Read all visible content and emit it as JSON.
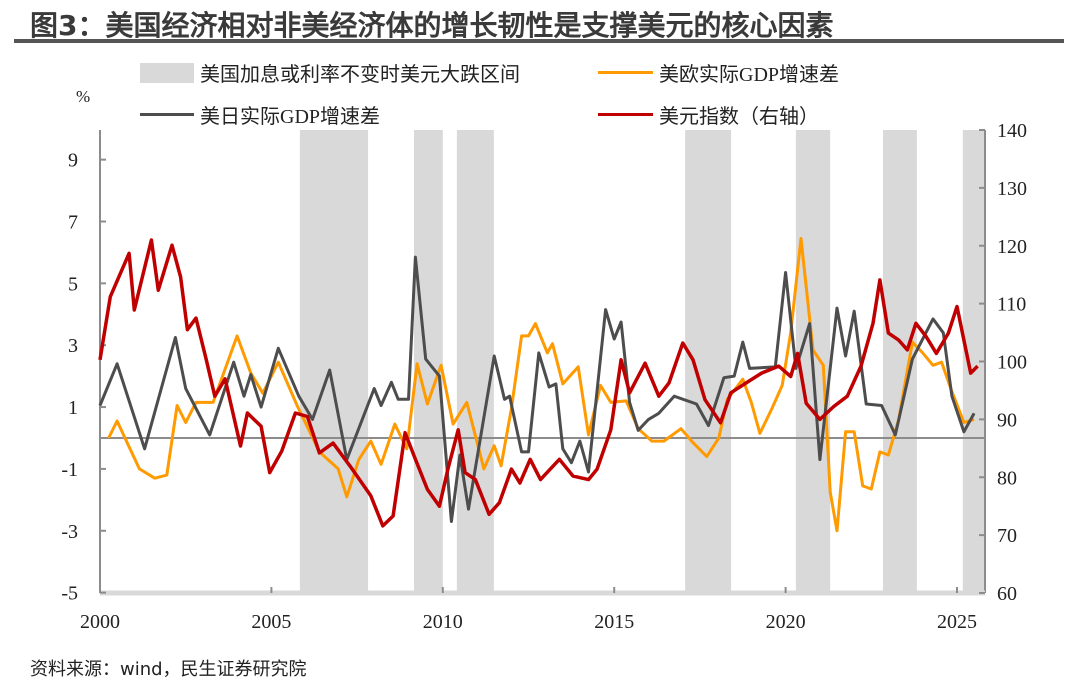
{
  "title": "图3：美国经济相对非美经济体的增长韧性是支撑美元的核心因素",
  "source": "资料来源：wind，民生证券研究院",
  "chart_data": {
    "type": "line",
    "title": "图3：美国经济相对非美经济体的增长韧性是支撑美元的核心因素",
    "ylabel": "%",
    "xlim": [
      2000,
      2025.8
    ],
    "ylim_left": [
      -5,
      10
    ],
    "ylim_right": [
      60,
      140
    ],
    "x_ticks": [
      2000,
      2005,
      2010,
      2015,
      2020,
      2025
    ],
    "y_ticks_left": [
      9,
      7,
      5,
      3,
      1,
      -1,
      -3,
      -5
    ],
    "y_ticks_right": [
      140,
      130,
      120,
      110,
      100,
      90,
      80,
      70,
      60
    ],
    "grid": false,
    "legend_position": "top",
    "colors": {
      "shade": "#d9d9d9",
      "us_eu": "#ff9a00",
      "us_jp": "#4d4d4d",
      "dxy": "#c00000",
      "zero": "#8c8c8c"
    },
    "shaded_ranges": {
      "name": "美国加息或利率不变时美元大跌区间",
      "ranges": [
        [
          2005.83,
          2007.82
        ],
        [
          2009.16,
          2010.0
        ],
        [
          2010.41,
          2011.49
        ],
        [
          2017.07,
          2018.41
        ],
        [
          2020.3,
          2021.3
        ],
        [
          2022.84,
          2023.83
        ],
        [
          2025.17,
          2025.8
        ]
      ]
    },
    "series": [
      {
        "name": "美欧实际GDP增速差",
        "axis": "left",
        "x": [
          2000.25,
          2000.5,
          2001.15,
          2001.6,
          2001.95,
          2002.25,
          2002.5,
          2002.8,
          2003.3,
          2004.0,
          2004.4,
          2004.75,
          2005.2,
          2005.75,
          2006.4,
          2006.95,
          2007.2,
          2007.55,
          2007.9,
          2008.2,
          2008.6,
          2008.95,
          2009.25,
          2009.55,
          2009.95,
          2010.3,
          2010.7,
          2011.2,
          2011.5,
          2011.7,
          2012.0,
          2012.3,
          2012.5,
          2012.7,
          2013.05,
          2013.2,
          2013.5,
          2013.95,
          2014.25,
          2014.6,
          2014.9,
          2015.35,
          2015.7,
          2016.1,
          2016.45,
          2016.95,
          2017.3,
          2017.7,
          2018.05,
          2018.3,
          2018.75,
          2019.0,
          2019.25,
          2019.6,
          2019.9,
          2020.15,
          2020.45,
          2020.8,
          2021.1,
          2021.3,
          2021.5,
          2021.75,
          2022.0,
          2022.25,
          2022.5,
          2022.75,
          2023.0,
          2023.3,
          2023.7,
          2024.0,
          2024.3,
          2024.55,
          2024.85,
          2025.2,
          2025.5
        ],
        "values": [
          0.0,
          0.55,
          -1.0,
          -1.3,
          -1.2,
          1.05,
          0.5,
          1.15,
          1.15,
          3.3,
          2.1,
          1.45,
          2.45,
          1.05,
          -0.45,
          -1.0,
          -1.9,
          -0.7,
          -0.1,
          -0.85,
          0.45,
          -0.35,
          2.4,
          1.1,
          2.35,
          0.45,
          1.15,
          -1.0,
          -0.25,
          -0.9,
          0.95,
          3.3,
          3.3,
          3.7,
          2.75,
          3.05,
          1.75,
          2.3,
          0.1,
          1.7,
          1.15,
          1.2,
          0.3,
          -0.1,
          -0.1,
          0.3,
          -0.15,
          -0.6,
          0.0,
          1.25,
          1.9,
          1.15,
          0.15,
          0.95,
          1.7,
          3.4,
          6.45,
          2.85,
          2.35,
          -1.75,
          -3.0,
          0.2,
          0.2,
          -1.55,
          -1.65,
          -0.45,
          -0.55,
          0.6,
          3.1,
          2.75,
          2.35,
          2.45,
          1.5,
          0.5,
          0.6
        ]
      },
      {
        "name": "美日实际GDP增速差",
        "axis": "left",
        "x": [
          2000.0,
          2000.5,
          2001.3,
          2002.2,
          2002.5,
          2003.2,
          2003.9,
          2004.2,
          2004.4,
          2004.7,
          2005.2,
          2005.8,
          2006.2,
          2006.7,
          2007.2,
          2008.0,
          2008.2,
          2008.5,
          2008.7,
          2009.0,
          2009.2,
          2009.5,
          2009.9,
          2010.25,
          2010.5,
          2010.75,
          2011.5,
          2011.8,
          2011.95,
          2012.3,
          2012.5,
          2012.8,
          2013.1,
          2013.3,
          2013.5,
          2013.75,
          2014.0,
          2014.25,
          2014.75,
          2015.0,
          2015.2,
          2015.45,
          2015.7,
          2016.0,
          2016.3,
          2016.75,
          2017.4,
          2017.75,
          2018.2,
          2018.5,
          2018.75,
          2018.95,
          2019.7,
          2020.0,
          2020.3,
          2020.7,
          2021.0,
          2021.5,
          2021.75,
          2022.0,
          2022.35,
          2022.8,
          2023.2,
          2023.7,
          2024.3,
          2024.6,
          2024.85,
          2025.2,
          2025.5
        ],
        "values": [
          1.05,
          2.4,
          -0.35,
          3.25,
          1.6,
          0.1,
          2.45,
          1.35,
          2.05,
          1.0,
          2.9,
          1.35,
          0.6,
          2.2,
          -0.7,
          1.6,
          1.05,
          1.8,
          1.25,
          1.25,
          5.85,
          2.55,
          2.0,
          -2.7,
          -0.55,
          -2.3,
          2.65,
          1.25,
          1.35,
          -0.45,
          -0.45,
          2.75,
          1.65,
          1.75,
          -0.35,
          -0.8,
          -0.1,
          -1.1,
          4.15,
          3.2,
          3.75,
          1.15,
          0.25,
          0.6,
          0.8,
          1.35,
          1.1,
          0.4,
          1.95,
          2.0,
          3.1,
          2.25,
          2.3,
          5.35,
          2.25,
          3.7,
          -0.7,
          4.2,
          2.65,
          4.1,
          1.1,
          1.05,
          0.1,
          2.55,
          3.85,
          3.4,
          1.35,
          0.2,
          0.8
        ]
      },
      {
        "name": "美元指数（右轴）",
        "axis": "right",
        "x": [
          2000.0,
          2000.3,
          2000.85,
          2001.0,
          2001.5,
          2001.7,
          2002.1,
          2002.35,
          2002.55,
          2002.8,
          2003.1,
          2003.35,
          2003.65,
          2004.1,
          2004.3,
          2004.7,
          2004.95,
          2005.3,
          2005.7,
          2006.05,
          2006.4,
          2006.8,
          2007.3,
          2007.9,
          2008.25,
          2008.55,
          2008.9,
          2009.2,
          2009.55,
          2009.9,
          2010.15,
          2010.45,
          2010.65,
          2010.95,
          2011.35,
          2011.65,
          2012.0,
          2012.25,
          2012.55,
          2012.85,
          2013.4,
          2013.8,
          2014.25,
          2014.5,
          2014.9,
          2015.2,
          2015.45,
          2015.9,
          2016.3,
          2016.6,
          2017.0,
          2017.3,
          2017.65,
          2018.1,
          2018.4,
          2018.85,
          2019.3,
          2019.8,
          2020.15,
          2020.35,
          2020.6,
          2021.0,
          2021.4,
          2021.8,
          2022.2,
          2022.55,
          2022.75,
          2023.0,
          2023.3,
          2023.55,
          2023.8,
          2024.1,
          2024.4,
          2024.75,
          2025.0,
          2025.2,
          2025.4,
          2025.6
        ],
        "values": [
          100.3,
          111.2,
          118.7,
          108.9,
          121.0,
          112.3,
          120.1,
          114.6,
          105.5,
          107.5,
          100.3,
          94.0,
          97.0,
          85.4,
          91.1,
          88.8,
          80.8,
          84.5,
          91.1,
          90.5,
          84.2,
          85.9,
          81.9,
          76.8,
          71.6,
          73.3,
          87.7,
          83.1,
          77.9,
          75.0,
          81.4,
          88.2,
          80.8,
          79.6,
          73.6,
          75.6,
          81.4,
          79.0,
          83.1,
          79.6,
          83.1,
          80.2,
          79.6,
          81.4,
          88.2,
          100.3,
          94.6,
          99.7,
          94.0,
          96.3,
          103.2,
          100.3,
          93.4,
          89.4,
          94.6,
          96.3,
          98.0,
          99.2,
          97.4,
          101.4,
          92.8,
          90.0,
          92.2,
          94.0,
          99.2,
          106.6,
          114.1,
          104.9,
          103.7,
          102.0,
          106.6,
          104.3,
          101.4,
          104.9,
          109.5,
          103.7,
          98.0,
          99.2
        ]
      }
    ]
  }
}
